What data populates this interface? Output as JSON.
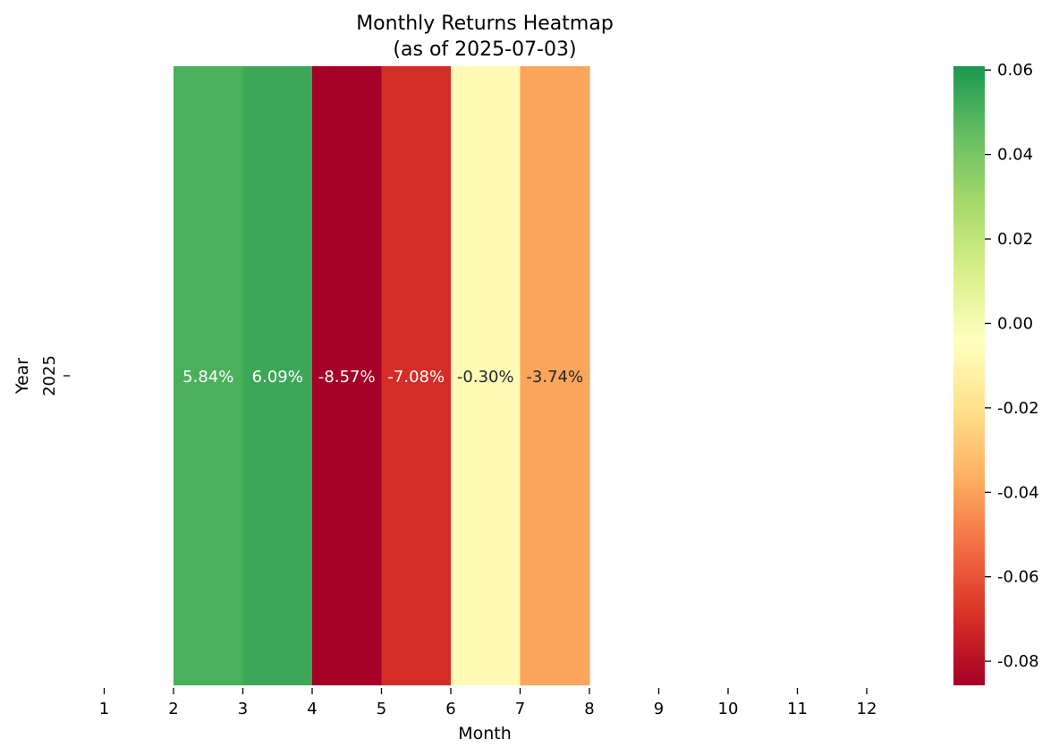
{
  "chart_data": {
    "type": "heatmap",
    "title_line1": "Monthly Returns Heatmap",
    "title_line2": "(as of 2025-07-03)",
    "xlabel": "Month",
    "ylabel": "Year",
    "x_categories": [
      "1",
      "2",
      "3",
      "4",
      "5",
      "6",
      "7",
      "8",
      "9",
      "10",
      "11",
      "12"
    ],
    "y_categories": [
      "2025"
    ],
    "cells": [
      {
        "year": "2025",
        "month": 2,
        "value": 0.0584,
        "label": "5.84%",
        "color": "#4bb05c"
      },
      {
        "year": "2025",
        "month": 3,
        "value": 0.0609,
        "label": "6.09%",
        "color": "#3ca758"
      },
      {
        "year": "2025",
        "month": 4,
        "value": -0.0857,
        "label": "-8.57%",
        "color": "#a50026"
      },
      {
        "year": "2025",
        "month": 5,
        "value": -0.0708,
        "label": "-7.08%",
        "color": "#d42d27"
      },
      {
        "year": "2025",
        "month": 6,
        "value": -0.003,
        "label": "-0.30%",
        "color": "#fffab6"
      },
      {
        "year": "2025",
        "month": 7,
        "value": -0.0374,
        "label": "-3.74%",
        "color": "#fca55d"
      }
    ],
    "colorbar": {
      "min": -0.0857,
      "max": 0.0609,
      "ticks": [
        {
          "value": 0.06,
          "label": "0.06"
        },
        {
          "value": 0.04,
          "label": "0.04"
        },
        {
          "value": 0.02,
          "label": "0.02"
        },
        {
          "value": 0.0,
          "label": "0.00"
        },
        {
          "value": -0.02,
          "label": "-0.02"
        },
        {
          "value": -0.04,
          "label": "-0.04"
        },
        {
          "value": -0.06,
          "label": "-0.06"
        },
        {
          "value": -0.08,
          "label": "-0.08"
        }
      ],
      "colormap": "RdYlGn",
      "stops": [
        "#a50026",
        "#d73027",
        "#f46d43",
        "#fdae61",
        "#fee08b",
        "#ffffbf",
        "#d9ef8b",
        "#a6d96a",
        "#66bd63",
        "#1a9850"
      ]
    },
    "label_colors": {
      "light": "#ffffff",
      "dark": "#262626"
    },
    "grid": false
  }
}
